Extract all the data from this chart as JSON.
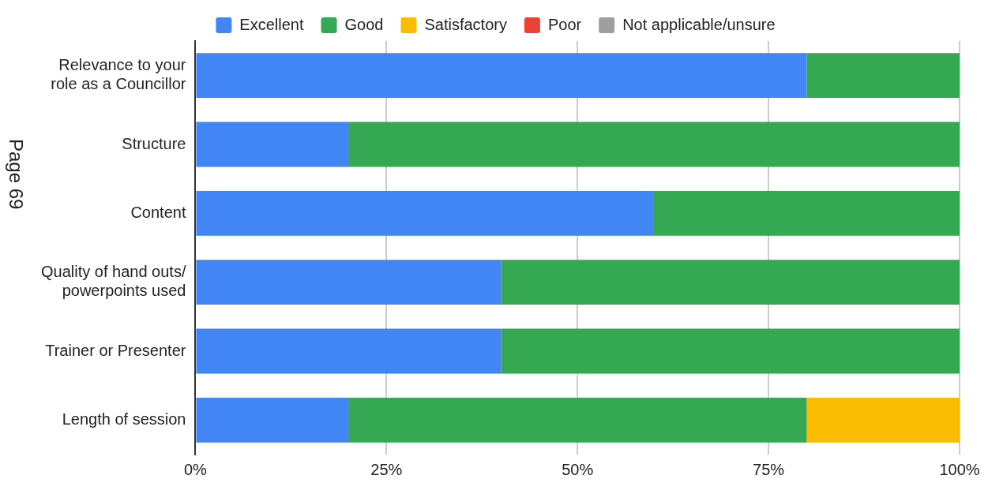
{
  "chart_data": {
    "type": "bar",
    "orientation": "horizontal",
    "stacked": true,
    "categories": [
      [
        "Relevance to your",
        "role as a Councillor"
      ],
      "Structure",
      "Content",
      [
        "Quality of hand outs/",
        "powerpoints used"
      ],
      "Trainer or Presenter",
      "Length of session"
    ],
    "series": [
      {
        "name": "Excellent",
        "color": "#4285f4",
        "values": [
          80,
          20,
          60,
          40,
          40,
          20
        ]
      },
      {
        "name": "Good",
        "color": "#34a853",
        "values": [
          20,
          80,
          40,
          60,
          60,
          60
        ]
      },
      {
        "name": "Satisfactory",
        "color": "#fbbc04",
        "values": [
          0,
          0,
          0,
          0,
          0,
          20
        ]
      },
      {
        "name": "Poor",
        "color": "#ea4335",
        "values": [
          0,
          0,
          0,
          0,
          0,
          0
        ]
      },
      {
        "name": "Not applicable/unsure",
        "color": "#9e9e9e",
        "values": [
          0,
          0,
          0,
          0,
          0,
          0
        ]
      }
    ],
    "xlim": [
      0,
      100
    ],
    "xticks": [
      {
        "value": 0,
        "label": "0%"
      },
      {
        "value": 25,
        "label": "25%"
      },
      {
        "value": 50,
        "label": "50%"
      },
      {
        "value": 75,
        "label": "75%"
      },
      {
        "value": 100,
        "label": "100%"
      }
    ],
    "grid": "x",
    "legend": "top",
    "annotations": [
      "Page 69"
    ]
  }
}
